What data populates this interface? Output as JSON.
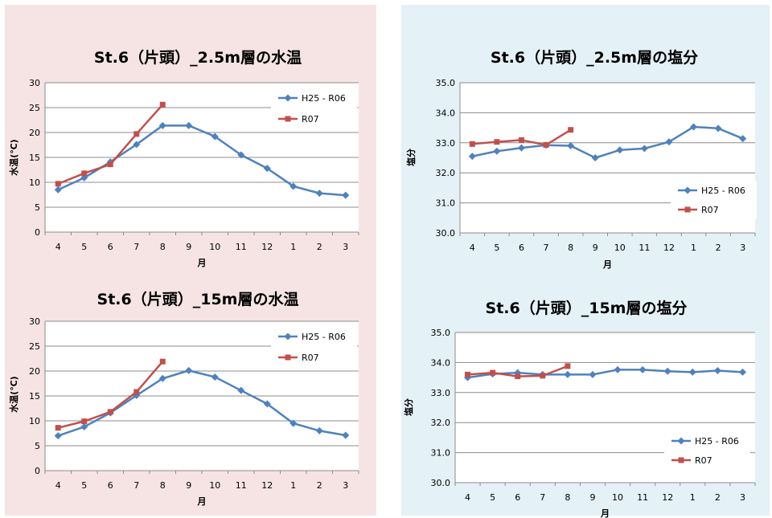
{
  "chart_data": [
    {
      "type": "line",
      "title": "St.6（片頭）_2.5m層の水温",
      "xlabel": "月",
      "ylabel": "水温(℃)",
      "categories": [
        "4",
        "5",
        "6",
        "7",
        "8",
        "9",
        "10",
        "11",
        "12",
        "1",
        "2",
        "3"
      ],
      "ylim": [
        0,
        30
      ],
      "yticks": [
        "0",
        "5",
        "10",
        "15",
        "20",
        "25",
        "30"
      ],
      "grid": true,
      "legend": "top-right",
      "series": [
        {
          "name": "H25 - R06",
          "color": "#4f81bd",
          "marker": "diamond",
          "values": [
            8.5,
            10.9,
            14.1,
            17.6,
            21.4,
            21.4,
            19.2,
            15.5,
            12.8,
            9.2,
            7.8,
            7.4
          ]
        },
        {
          "name": "R07",
          "color": "#c0504d",
          "marker": "square",
          "values": [
            9.7,
            11.8,
            13.6,
            19.7,
            25.6,
            null,
            null,
            null,
            null,
            null,
            null,
            null
          ]
        }
      ]
    },
    {
      "type": "line",
      "title": "St.6（片頭）_2.5m層の塩分",
      "xlabel": "月",
      "ylabel": "塩分",
      "categories": [
        "4",
        "5",
        "6",
        "7",
        "8",
        "9",
        "10",
        "11",
        "12",
        "1",
        "2",
        "3"
      ],
      "ylim": [
        30,
        35
      ],
      "yticks": [
        "30.0",
        "31.0",
        "32.0",
        "33.0",
        "34.0",
        "35.0"
      ],
      "grid": true,
      "legend": "bottom-right",
      "series": [
        {
          "name": "H25 - R06",
          "color": "#4f81bd",
          "marker": "diamond",
          "values": [
            32.55,
            32.72,
            32.83,
            32.92,
            32.9,
            32.5,
            32.76,
            32.81,
            33.03,
            33.53,
            33.48,
            33.14
          ]
        },
        {
          "name": "R07",
          "color": "#c0504d",
          "marker": "square",
          "values": [
            32.96,
            33.03,
            33.09,
            32.93,
            33.43,
            null,
            null,
            null,
            null,
            null,
            null,
            null
          ]
        }
      ]
    },
    {
      "type": "line",
      "title": "St.6（片頭）_15m層の水温",
      "xlabel": "月",
      "ylabel": "水温(℃)",
      "categories": [
        "4",
        "5",
        "6",
        "7",
        "8",
        "9",
        "10",
        "11",
        "12",
        "1",
        "2",
        "3"
      ],
      "ylim": [
        0,
        30
      ],
      "yticks": [
        "0",
        "5",
        "10",
        "15",
        "20",
        "25",
        "30"
      ],
      "grid": true,
      "legend": "top-right",
      "series": [
        {
          "name": "H25 - R06",
          "color": "#4f81bd",
          "marker": "diamond",
          "values": [
            7.0,
            8.8,
            11.6,
            15.1,
            18.5,
            20.1,
            18.8,
            16.1,
            13.4,
            9.5,
            8.0,
            7.1
          ]
        },
        {
          "name": "R07",
          "color": "#c0504d",
          "marker": "square",
          "values": [
            8.6,
            9.9,
            11.8,
            15.8,
            21.9,
            null,
            null,
            null,
            null,
            null,
            null,
            null
          ]
        }
      ]
    },
    {
      "type": "line",
      "title": "St.6（片頭）_15m層の塩分",
      "xlabel": "月",
      "ylabel": "塩分",
      "categories": [
        "4",
        "5",
        "6",
        "7",
        "8",
        "9",
        "10",
        "11",
        "12",
        "1",
        "2",
        "3"
      ],
      "ylim": [
        30,
        35
      ],
      "yticks": [
        "30.0",
        "31.0",
        "32.0",
        "33.0",
        "34.0",
        "35.0"
      ],
      "grid": true,
      "legend": "bottom-right",
      "series": [
        {
          "name": "H25 - R06",
          "color": "#4f81bd",
          "marker": "diamond",
          "values": [
            33.5,
            33.62,
            33.66,
            33.6,
            33.6,
            33.6,
            33.76,
            33.76,
            33.71,
            33.68,
            33.73,
            33.68
          ]
        },
        {
          "name": "R07",
          "color": "#c0504d",
          "marker": "square",
          "values": [
            33.6,
            33.66,
            33.54,
            33.56,
            33.88,
            null,
            null,
            null,
            null,
            null,
            null,
            null
          ]
        }
      ]
    }
  ],
  "colors": {
    "left_panel_bg": "#f6e4e4",
    "right_panel_bg": "#e4f1f7",
    "plot_bg": "#ffffff",
    "gridline": "#8c8c8c"
  }
}
